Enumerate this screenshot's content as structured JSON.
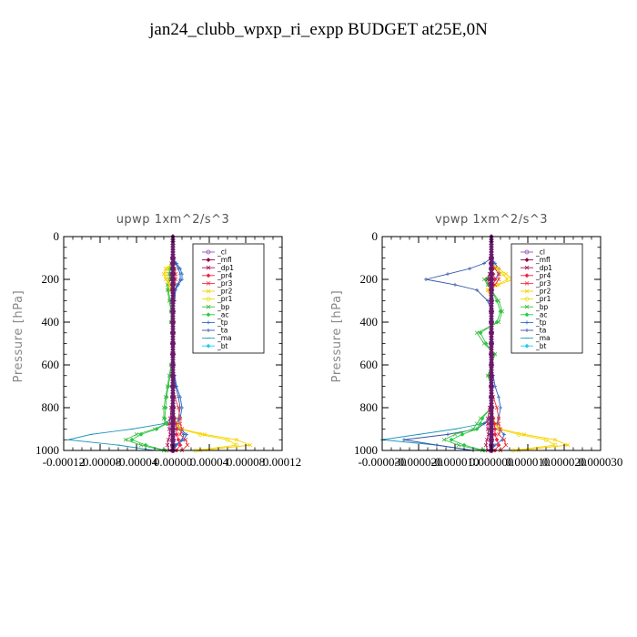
{
  "title": "jan24_clubb_wpxp_ri_expp  BUDGET at25E,0N",
  "legend": [
    {
      "name": "_cl",
      "color": "#9955bb",
      "marker": "circle"
    },
    {
      "name": "_mfl",
      "color": "#880044",
      "marker": "diamond"
    },
    {
      "name": "_dp1",
      "color": "#aa1155",
      "marker": "x"
    },
    {
      "name": "_pr4",
      "color": "#ee2244",
      "marker": "diamond"
    },
    {
      "name": "_pr3",
      "color": "#ee3333",
      "marker": "x"
    },
    {
      "name": "_pr2",
      "color": "#ffcc00",
      "marker": "x"
    },
    {
      "name": "_pr1",
      "color": "#eedd00",
      "marker": "circle"
    },
    {
      "name": "_bp",
      "color": "#44bb44",
      "marker": "x"
    },
    {
      "name": "_ac",
      "color": "#22cc44",
      "marker": "diamond"
    },
    {
      "name": "_tp",
      "color": "#2266cc",
      "marker": "plus"
    },
    {
      "name": "_ta",
      "color": "#3355aa",
      "marker": "plus"
    },
    {
      "name": "_ma",
      "color": "#2299bb",
      "marker": "dash"
    },
    {
      "name": "_bt",
      "color": "#22ccee",
      "marker": "diamond"
    }
  ],
  "chart_data": [
    {
      "type": "line",
      "title": "upwp   1xm^2/s^3",
      "ylabel": "Pressure [hPa]",
      "xlim": [
        -0.00012,
        0.00012
      ],
      "ylim": [
        1000,
        0
      ],
      "x_ticks": [
        "-0.00012",
        "-0.00008",
        "-0.00004",
        "0.00000",
        "0.00004",
        "0.00008",
        "0.00012"
      ],
      "y_ticks": [
        "0",
        "200",
        "400",
        "600",
        "800",
        "1000"
      ],
      "legend_position": "top-right",
      "pressure": [
        100,
        125,
        150,
        175,
        200,
        225,
        250,
        300,
        350,
        400,
        450,
        500,
        550,
        600,
        650,
        700,
        750,
        800,
        850,
        875,
        900,
        925,
        950,
        975,
        1000
      ],
      "series": [
        {
          "name": "_cl",
          "values": [
            0,
            0,
            0,
            0,
            0,
            0,
            0,
            0,
            0,
            0,
            0,
            0,
            0,
            0,
            0,
            0,
            0,
            0,
            0,
            0,
            0,
            0,
            0,
            0,
            0
          ]
        },
        {
          "name": "_mfl",
          "values": [
            0,
            0,
            0,
            0,
            0,
            0,
            0,
            0,
            0,
            0,
            0,
            0,
            0,
            0,
            0,
            0,
            0,
            0,
            0,
            0,
            0,
            0,
            0,
            0,
            0
          ]
        },
        {
          "name": "_dp1",
          "values": [
            0,
            0,
            0,
            -2e-06,
            -2e-06,
            0,
            0,
            0,
            0,
            0,
            0,
            0,
            0,
            0,
            0,
            0,
            0,
            -2e-06,
            -3e-06,
            -4e-06,
            -4e-06,
            -3e-06,
            -5e-06,
            -6e-06,
            -4e-06
          ]
        },
        {
          "name": "_pr4",
          "values": [
            0,
            0,
            0,
            0,
            0,
            0,
            0,
            0,
            0,
            0,
            0,
            0,
            0,
            0,
            0,
            0,
            0,
            1e-06,
            2e-06,
            3e-06,
            4e-06,
            4e-06,
            6e-06,
            8e-06,
            4e-06
          ]
        },
        {
          "name": "_pr3",
          "values": [
            0,
            0,
            2e-06,
            3e-06,
            3e-06,
            2e-06,
            0,
            0,
            0,
            0,
            0,
            0,
            0,
            0,
            0,
            0,
            2e-06,
            6e-06,
            8e-06,
            8e-06,
            1e-05,
            8e-06,
            1.4e-05,
            1.6e-05,
            1e-05
          ]
        },
        {
          "name": "_pr2",
          "values": [
            0,
            0,
            -8e-06,
            -1e-05,
            -8e-06,
            -4e-06,
            -2e-06,
            0,
            0,
            0,
            0,
            0,
            0,
            0,
            0,
            0,
            0,
            0,
            2e-06,
            4e-06,
            1e-05,
            3.5e-05,
            7e-05,
            8.5e-05,
            3e-05
          ]
        },
        {
          "name": "_pr1",
          "values": [
            0,
            0,
            -6e-06,
            -8e-06,
            -6e-06,
            -3e-06,
            -2e-06,
            0,
            0,
            0,
            0,
            0,
            0,
            0,
            0,
            0,
            0,
            0,
            1e-06,
            3e-06,
            8e-06,
            3e-05,
            6e-05,
            7e-05,
            2.5e-05
          ]
        },
        {
          "name": "_bp",
          "values": [
            0,
            -2e-06,
            -4e-06,
            -4e-06,
            -4e-06,
            -6e-06,
            -6e-06,
            -4e-06,
            -2e-06,
            -2e-06,
            0,
            0,
            0,
            -2e-06,
            -4e-06,
            -6e-06,
            -8e-06,
            -1e-05,
            -1e-05,
            -8e-06,
            -2e-05,
            -4e-05,
            -5.2e-05,
            -3.5e-05,
            -1e-05
          ]
        },
        {
          "name": "_ac",
          "values": [
            0,
            -1e-06,
            -3e-06,
            -3e-06,
            -3e-06,
            -5e-06,
            -5e-06,
            -3e-06,
            -2e-06,
            -2e-06,
            0,
            0,
            0,
            -2e-06,
            -3e-06,
            -5e-06,
            -7e-06,
            -8e-06,
            -9e-06,
            -7e-06,
            -1.8e-05,
            -3.5e-05,
            -4.5e-05,
            -3e-05,
            -8e-06
          ]
        },
        {
          "name": "_tp",
          "values": [
            0,
            4e-06,
            8e-06,
            1e-05,
            1e-05,
            6e-06,
            3e-06,
            2e-06,
            0,
            0,
            0,
            0,
            0,
            0,
            2e-06,
            4e-06,
            8e-06,
            1e-05,
            8e-06,
            5e-06,
            8e-06,
            1.5e-05,
            1.2e-05,
            4e-06,
            1e-06
          ]
        },
        {
          "name": "_ta",
          "values": [
            0,
            3e-06,
            6e-06,
            8e-06,
            8e-06,
            5e-06,
            2e-06,
            1e-06,
            0,
            0,
            0,
            0,
            0,
            0,
            1e-06,
            3e-06,
            6e-06,
            8e-06,
            6e-06,
            4e-06,
            6e-06,
            1.2e-05,
            1e-05,
            3e-06,
            0
          ]
        },
        {
          "name": "_ma",
          "values": [
            0,
            0,
            0,
            0,
            0,
            0,
            0,
            0,
            0,
            0,
            0,
            0,
            0,
            0,
            0,
            0,
            0,
            0,
            0,
            -1e-05,
            -4.5e-05,
            -9e-05,
            -0.000115,
            -6e-05,
            -2e-05
          ]
        },
        {
          "name": "_bt",
          "values": [
            0,
            0,
            0,
            0,
            0,
            0,
            0,
            0,
            0,
            0,
            0,
            0,
            0,
            0,
            0,
            0,
            0,
            0,
            0,
            0,
            0,
            0,
            0,
            0,
            0
          ]
        }
      ]
    },
    {
      "type": "line",
      "title": "vpwp   1xm^2/s^3",
      "ylabel": "Pressure [hPa]",
      "xlim": [
        -3e-05,
        3e-05
      ],
      "ylim": [
        1000,
        0
      ],
      "x_ticks": [
        "-0.000030",
        "-0.000020",
        "-0.000010",
        "0.000000",
        "0.000010",
        "0.000020",
        "0.000030"
      ],
      "y_ticks": [
        "0",
        "200",
        "400",
        "600",
        "800",
        "1000"
      ],
      "legend_position": "top-right",
      "pressure": [
        100,
        125,
        150,
        175,
        200,
        225,
        250,
        300,
        350,
        400,
        450,
        500,
        550,
        600,
        650,
        700,
        750,
        800,
        850,
        875,
        900,
        925,
        950,
        975,
        1000
      ],
      "series": [
        {
          "name": "_cl",
          "values": [
            0,
            0,
            0,
            0,
            0,
            0,
            0,
            0,
            0,
            0,
            0,
            0,
            0,
            0,
            0,
            0,
            0,
            0,
            0,
            0,
            0,
            0,
            0,
            0,
            0
          ]
        },
        {
          "name": "_mfl",
          "values": [
            0,
            0,
            0,
            0,
            0,
            0,
            0,
            0,
            0,
            0,
            0,
            0,
            0,
            0,
            0,
            0,
            0,
            0,
            0,
            0,
            0,
            0,
            0,
            0,
            0
          ]
        },
        {
          "name": "_dp1",
          "values": [
            0,
            0,
            0,
            -5e-07,
            -1e-06,
            -5e-07,
            0,
            0,
            0,
            0,
            0,
            0,
            0,
            0,
            0,
            0,
            0,
            -5e-07,
            -1e-06,
            -1e-06,
            -1e-06,
            -8e-07,
            -1.2e-06,
            -1.5e-06,
            -1e-06
          ]
        },
        {
          "name": "_pr4",
          "values": [
            0,
            0,
            0,
            5e-07,
            1e-06,
            5e-07,
            0,
            0,
            0,
            0,
            0,
            0,
            0,
            0,
            0,
            0,
            0,
            3e-07,
            5e-07,
            8e-07,
            1e-06,
            1e-06,
            1.5e-06,
            2e-06,
            1e-06
          ]
        },
        {
          "name": "_pr3",
          "values": [
            0,
            0,
            1e-06,
            2e-06,
            2e-06,
            1e-06,
            0,
            0,
            0,
            0,
            0,
            0,
            0,
            0,
            0,
            0,
            5e-07,
            1.5e-06,
            2e-06,
            2e-06,
            2.5e-06,
            2e-06,
            3.5e-06,
            4e-06,
            2.5e-06
          ]
        },
        {
          "name": "_pr2",
          "values": [
            0,
            0,
            2e-06,
            4e-06,
            6e-06,
            2e-06,
            -1e-06,
            0,
            0,
            0,
            0,
            0,
            0,
            0,
            0,
            0,
            0,
            0,
            5e-07,
            1e-06,
            2.5e-06,
            9e-06,
            1.75e-05,
            2.1e-05,
            7.5e-06
          ]
        },
        {
          "name": "_pr1",
          "values": [
            0,
            0,
            1.5e-06,
            3e-06,
            4.5e-06,
            1.5e-06,
            -8e-07,
            0,
            0,
            0,
            0,
            0,
            0,
            0,
            0,
            0,
            0,
            0,
            3e-07,
            8e-07,
            2e-06,
            7.5e-06,
            1.5e-05,
            1.75e-05,
            6e-06
          ]
        },
        {
          "name": "_bp",
          "values": [
            0,
            0,
            0,
            0,
            -2e-06,
            -1e-06,
            0,
            2e-06,
            3e-06,
            2e-06,
            -4e-06,
            -2e-06,
            1e-06,
            0,
            -1e-06,
            0,
            0,
            0,
            -3e-06,
            -4e-06,
            -5e-06,
            -1e-05,
            -1.3e-05,
            -9e-06,
            -2.5e-06
          ]
        },
        {
          "name": "_ac",
          "values": [
            0,
            0,
            0,
            0,
            -1.5e-06,
            -8e-07,
            0,
            1.5e-06,
            2.5e-06,
            1.5e-06,
            -3e-06,
            -1.5e-06,
            8e-07,
            0,
            -8e-07,
            0,
            0,
            0,
            -2.5e-06,
            -3e-06,
            -4e-06,
            -8e-06,
            -1.1e-05,
            -7.5e-06,
            -2e-06
          ]
        },
        {
          "name": "_tp",
          "values": [
            0,
            1e-06,
            2e-06,
            2e-06,
            1e-06,
            5e-07,
            0,
            0,
            0,
            0,
            0,
            0,
            0,
            0,
            5e-07,
            1e-06,
            2e-06,
            2.5e-06,
            2e-06,
            1.5e-06,
            2e-06,
            3.5e-06,
            3e-06,
            1e-06,
            0
          ]
        },
        {
          "name": "_ta",
          "values": [
            0,
            -2e-06,
            -6e-06,
            -1.2e-05,
            -1.8e-05,
            -1e-05,
            -4e-06,
            -1e-06,
            0,
            0,
            0,
            0,
            0,
            0,
            0,
            0,
            0,
            0,
            0,
            -2e-06,
            -4e-06,
            -1.2e-05,
            -2.4e-05,
            -1.5e-05,
            -5e-06
          ]
        },
        {
          "name": "_ma",
          "values": [
            0,
            0,
            0,
            0,
            0,
            0,
            0,
            0,
            0,
            0,
            0,
            0,
            0,
            0,
            0,
            0,
            0,
            0,
            0,
            -2.5e-06,
            -1e-05,
            -2e-05,
            -3e-05,
            -1.5e-05,
            -5e-06
          ]
        },
        {
          "name": "_bt",
          "values": [
            0,
            0,
            0,
            0,
            0,
            0,
            0,
            0,
            0,
            0,
            0,
            0,
            0,
            0,
            0,
            0,
            0,
            0,
            0,
            0,
            0,
            0,
            0,
            0,
            0
          ]
        }
      ]
    }
  ]
}
